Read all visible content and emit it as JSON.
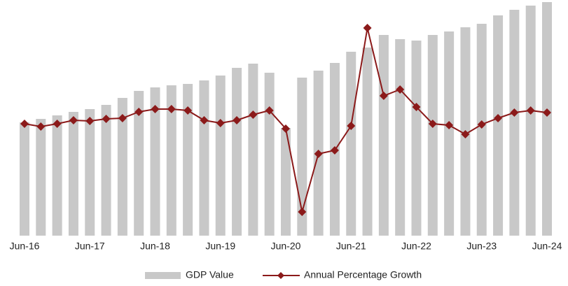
{
  "chart_data": {
    "type": "bar_line",
    "categories": [
      "Jun-16",
      null,
      null,
      null,
      "Jun-17",
      null,
      null,
      null,
      "Jun-18",
      null,
      null,
      null,
      "Jun-19",
      null,
      null,
      null,
      "Jun-20",
      null,
      null,
      null,
      "Jun-21",
      null,
      null,
      null,
      "Jun-22",
      null,
      null,
      null,
      "Jun-23",
      null,
      null,
      null,
      "Jun-24"
    ],
    "series": [
      {
        "name": "GDP Value",
        "type": "bar",
        "color": "#c8c8c8",
        "values": [
          162,
          167,
          172,
          177,
          181,
          187,
          197,
          207,
          212,
          215,
          217,
          222,
          229,
          240,
          246,
          233,
          154,
          226,
          236,
          247,
          263,
          269,
          287,
          281,
          279,
          287,
          292,
          298,
          303,
          315,
          323,
          329,
          334
        ]
      },
      {
        "name": "Annual Percentage Growth",
        "type": "line",
        "axis": "y2",
        "color": "#8b1a1a",
        "values": [
          160,
          156,
          160,
          165,
          164,
          167,
          168,
          177,
          181,
          181,
          179,
          165,
          161,
          165,
          173,
          179,
          153,
          34,
          117,
          122,
          157,
          297,
          200,
          209,
          184,
          160,
          158,
          145,
          159,
          168,
          176,
          179,
          176
        ]
      }
    ],
    "ylim": [
      0,
      337
    ],
    "y2lim": [
      0,
      337
    ],
    "legend": "bottom"
  }
}
